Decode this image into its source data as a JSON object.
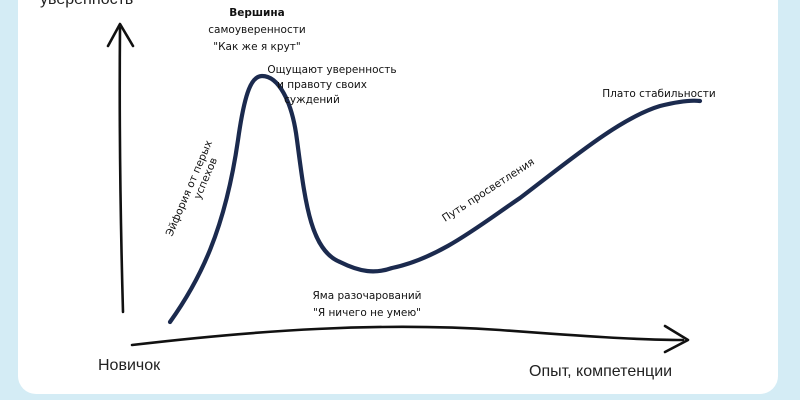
{
  "axes": {
    "y_label": "уверенность",
    "x_label_start": "Новичок",
    "x_label_end": "Опыт, компетенции"
  },
  "curve_labels": {
    "peak_title_line1": "Вершина",
    "peak_title_line2": "самоуверенности",
    "peak_title_line3": "\"Как же я крут\"",
    "confidence_line1": "Ощущают уверенность",
    "confidence_line2": "и правоту своих",
    "confidence_line3": "суждений",
    "euphoria_line1": "Эйфория от перых",
    "euphoria_line2": "успехов",
    "pit_line1": "Яма разочарований",
    "pit_line2": "\"Я ничего не умею\"",
    "enlightenment": "Путь просветления",
    "plateau": "Плато стабильности"
  },
  "colors": {
    "curve": "#1b2a4e",
    "axis": "#111111",
    "background": "#d4ecf5",
    "card": "#ffffff"
  }
}
